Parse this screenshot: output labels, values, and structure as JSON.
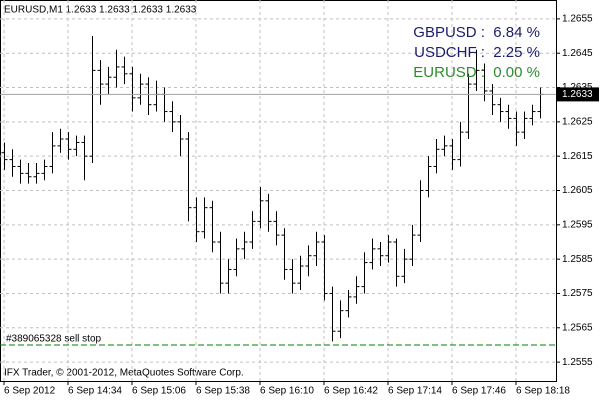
{
  "chart_data": {
    "type": "ohlc",
    "title": "EURUSD,M1  1.2633 1.2633 1.2633 1.2633",
    "footer": "IFX Trader, © 2001-2012, MetaQuotes Software Corp.",
    "annotations": [
      {
        "text": "GBPUSD :  6.84 %",
        "color": "#1c1c6e"
      },
      {
        "text": "USDCHF :  2.25 %",
        "color": "#1c1c6e"
      },
      {
        "text": "EURUSD :  0.00 %",
        "color": "#2e8b2e"
      }
    ],
    "categories": [
      "6 Sep 2012",
      null,
      null,
      null,
      null,
      null,
      null,
      null,
      "6 Sep 14:34",
      null,
      null,
      null,
      null,
      null,
      null,
      null,
      "6 Sep 15:06",
      null,
      null,
      null,
      null,
      null,
      null,
      null,
      "6 Sep 15:38",
      null,
      null,
      null,
      null,
      null,
      null,
      null,
      "6 Sep 16:10",
      null,
      null,
      null,
      null,
      null,
      null,
      null,
      "6 Sep 16:42",
      null,
      null,
      null,
      null,
      null,
      null,
      null,
      "6 Sep 17:14",
      null,
      null,
      null,
      null,
      null,
      null,
      null,
      "6 Sep 17:46",
      null,
      null,
      null,
      null,
      null,
      null,
      null,
      "6 Sep 18:18",
      null,
      null,
      null
    ],
    "open": [
      1.2616,
      1.2614,
      1.2612,
      1.261,
      1.2609,
      1.261,
      1.2612,
      1.2618,
      1.262,
      1.2617,
      1.2619,
      1.2615,
      1.264,
      1.2636,
      1.2638,
      1.2641,
      1.2639,
      1.2632,
      1.2636,
      1.263,
      1.2633,
      1.2628,
      1.2625,
      1.262,
      1.26,
      1.2593,
      1.26,
      1.259,
      1.2578,
      1.2582,
      1.2588,
      1.259,
      1.2596,
      1.2602,
      1.2596,
      1.2592,
      1.2582,
      1.2578,
      1.2583,
      1.2586,
      1.259,
      1.2575,
      1.2564,
      1.257,
      1.2574,
      1.2577,
      1.2584,
      1.2588,
      1.2586,
      1.259,
      1.258,
      1.2585,
      1.2592,
      1.2605,
      1.2612,
      1.2617,
      1.2618,
      1.2614,
      1.2622,
      1.2636,
      1.264,
      1.2634,
      1.263,
      1.2628,
      1.2626,
      1.2622,
      1.2626,
      1.2628
    ],
    "high": [
      1.2619,
      1.2617,
      1.2614,
      1.2613,
      1.2613,
      1.2614,
      1.2622,
      1.2623,
      1.2622,
      1.2621,
      1.2621,
      1.265,
      1.2643,
      1.2641,
      1.2646,
      1.2644,
      1.2641,
      1.2639,
      1.2638,
      1.2637,
      1.2635,
      1.2631,
      1.2627,
      1.2622,
      1.2603,
      1.2603,
      1.2602,
      1.2593,
      1.2585,
      1.2591,
      1.2593,
      1.2599,
      1.2606,
      1.2604,
      1.2599,
      1.2594,
      1.2585,
      1.2586,
      1.2589,
      1.2593,
      1.2592,
      1.2577,
      1.2573,
      1.2576,
      1.258,
      1.2587,
      1.2591,
      1.259,
      1.2592,
      1.2591,
      1.2588,
      1.2595,
      1.2608,
      1.2615,
      1.262,
      1.2621,
      1.262,
      1.2625,
      1.2639,
      1.2646,
      1.2642,
      1.2636,
      1.2632,
      1.263,
      1.2628,
      1.2628,
      1.263,
      1.2635
    ],
    "low": [
      1.2611,
      1.2609,
      1.2607,
      1.2607,
      1.2607,
      1.2608,
      1.261,
      1.2616,
      1.2614,
      1.2615,
      1.2608,
      1.2613,
      1.263,
      1.2633,
      1.2635,
      1.2636,
      1.2628,
      1.263,
      1.2627,
      1.2628,
      1.2625,
      1.2622,
      1.2615,
      1.2596,
      1.259,
      1.2591,
      1.2587,
      1.2575,
      1.2575,
      1.258,
      1.2585,
      1.2588,
      1.2594,
      1.2593,
      1.2589,
      1.2579,
      1.2575,
      1.2576,
      1.258,
      1.2583,
      1.2573,
      1.2561,
      1.2562,
      1.2568,
      1.2572,
      1.2575,
      1.2582,
      1.2583,
      1.2584,
      1.2577,
      1.2578,
      1.2583,
      1.259,
      1.2603,
      1.261,
      1.2615,
      1.2611,
      1.2612,
      1.262,
      1.2634,
      1.2631,
      1.2627,
      1.2625,
      1.2623,
      1.2618,
      1.262,
      1.2624,
      1.2626
    ],
    "close": [
      1.2614,
      1.2612,
      1.261,
      1.2609,
      1.261,
      1.2612,
      1.2618,
      1.262,
      1.2617,
      1.2619,
      1.2615,
      1.264,
      1.2636,
      1.2638,
      1.2641,
      1.2639,
      1.2632,
      1.2636,
      1.263,
      1.2633,
      1.2628,
      1.2625,
      1.262,
      1.26,
      1.2593,
      1.26,
      1.259,
      1.2578,
      1.2582,
      1.2588,
      1.259,
      1.2596,
      1.2602,
      1.2596,
      1.2592,
      1.2582,
      1.2578,
      1.2583,
      1.2586,
      1.259,
      1.2575,
      1.2564,
      1.257,
      1.2574,
      1.2577,
      1.2584,
      1.2588,
      1.2586,
      1.259,
      1.258,
      1.2585,
      1.2592,
      1.2605,
      1.2612,
      1.2617,
      1.2618,
      1.2614,
      1.2622,
      1.2636,
      1.264,
      1.2634,
      1.263,
      1.2628,
      1.2626,
      1.2622,
      1.2626,
      1.2628,
      1.2633
    ],
    "color": "#000000",
    "ylim": [
      1.25495,
      1.26605
    ],
    "yticks": [
      1.2555,
      1.2565,
      1.2575,
      1.2585,
      1.2595,
      1.2605,
      1.2615,
      1.2625,
      1.2635,
      1.2645,
      1.2655
    ],
    "grid": true,
    "current_price": 1.2633,
    "order_line": {
      "label": "#389065328 sell stop",
      "value": 1.256,
      "color": "#008000"
    }
  }
}
